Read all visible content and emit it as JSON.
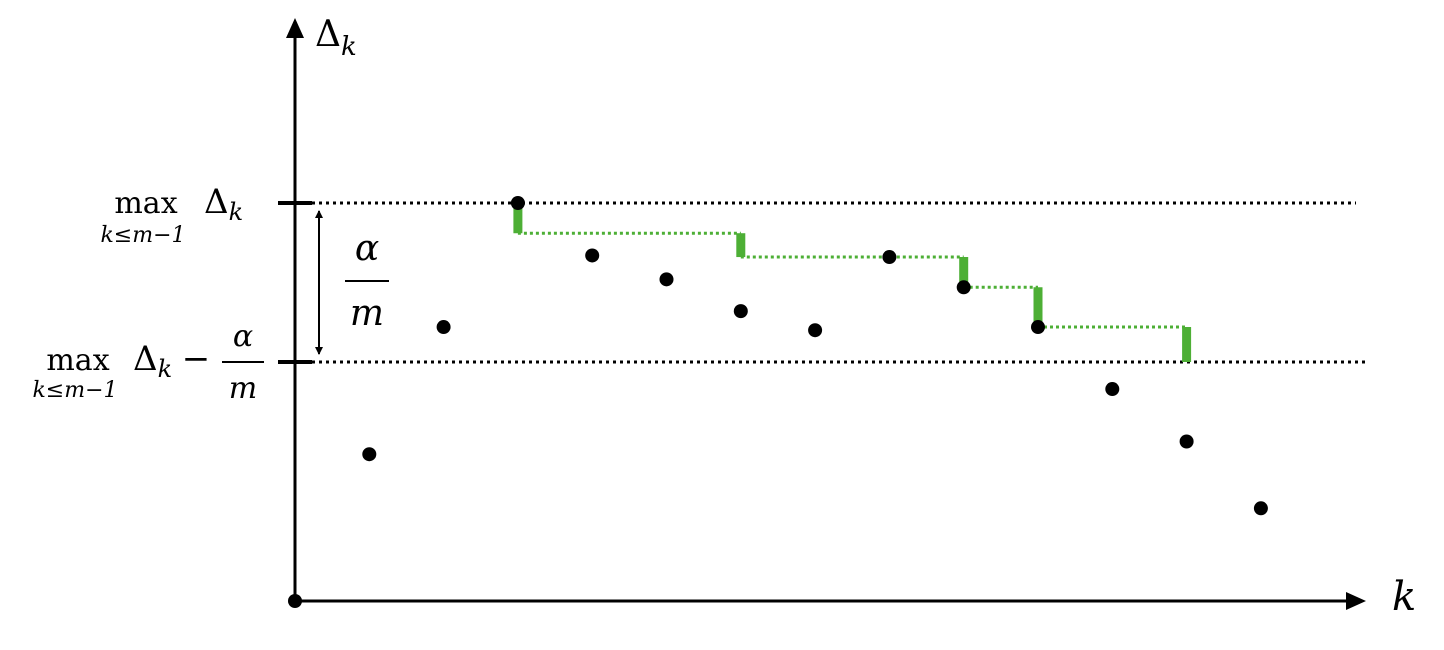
{
  "chart_data": {
    "type": "scatter",
    "y_axis_label": {
      "symbol": "Δ",
      "subscript": "k"
    },
    "x_axis_label": "k",
    "threshold_labels": {
      "upper": {
        "operator": "max",
        "under": "k≤m−1",
        "symbol": "Δ",
        "subscript": "k"
      },
      "lower": {
        "operator": "max",
        "under": "k≤m−1",
        "symbol": "Δ",
        "subscript": "k",
        "minus": "−",
        "num": "α",
        "den": "m"
      }
    },
    "gap_label": {
      "num": "α",
      "den": "m"
    },
    "upper_level": 1.0,
    "lower_level": 0.0,
    "origin": {
      "x": 0,
      "y": -1.5
    },
    "points": [
      {
        "x": 1,
        "y": -0.58
      },
      {
        "x": 2,
        "y": 0.22
      },
      {
        "x": 3,
        "y": 1.0
      },
      {
        "x": 4,
        "y": 0.67
      },
      {
        "x": 5,
        "y": 0.52
      },
      {
        "x": 6,
        "y": 0.32
      },
      {
        "x": 7,
        "y": 0.2
      },
      {
        "x": 8,
        "y": 0.66
      },
      {
        "x": 9,
        "y": 0.47
      },
      {
        "x": 10,
        "y": 0.22
      },
      {
        "x": 11,
        "y": -0.17
      },
      {
        "x": 12,
        "y": -0.5
      },
      {
        "x": 13,
        "y": -0.92
      }
    ],
    "highlight": {
      "color": "#4daf35",
      "path": [
        {
          "x": 3,
          "y": 1.0
        },
        {
          "x": 3,
          "y": 0.81
        },
        {
          "x": 6,
          "y": 0.81
        },
        {
          "x": 6,
          "y": 0.66
        },
        {
          "x": 9,
          "y": 0.66
        },
        {
          "x": 9,
          "y": 0.47
        },
        {
          "x": 10,
          "y": 0.47
        },
        {
          "x": 10,
          "y": 0.22
        },
        {
          "x": 12,
          "y": 0.22
        },
        {
          "x": 12,
          "y": 0.0
        }
      ],
      "point_x": [
        3,
        6,
        9,
        10,
        12
      ],
      "point_y": [
        0.97,
        0.75,
        0.62,
        0.45,
        0.22
      ]
    },
    "colors": {
      "axis": "#000000",
      "points": "#000000",
      "threshold": "#000000"
    },
    "grid": false,
    "legend": "none"
  }
}
